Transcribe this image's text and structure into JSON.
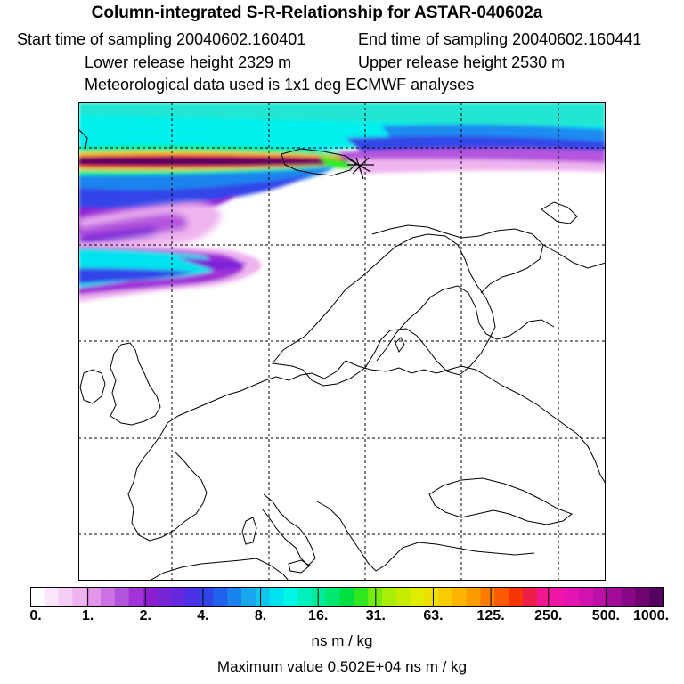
{
  "header": {
    "title": "Column-integrated S-R-Relationship for ASTAR-040602a",
    "start_time": "Start time of sampling 20040602.160401",
    "end_time": "End time of sampling 20040602.160441",
    "lower_release": "Lower release height 2329 m",
    "upper_release": "Upper release height 2530 m",
    "meteo": "Meteorological data used is 1x1 deg ECMWF analyses"
  },
  "map": {
    "region": "Europe and North Atlantic",
    "release_site_marker": "release-site-icon"
  },
  "colorbar": {
    "tick_labels": [
      "0.",
      "1.",
      "2.",
      "4.",
      "8.",
      "16.",
      "31.",
      "63.",
      "125.",
      "250.",
      "500.",
      "1000."
    ],
    "colors": [
      "#ffffff",
      "#fbe6fb",
      "#f5cef5",
      "#efb4f0",
      "#e296ea",
      "#cc72e4",
      "#b454dd",
      "#a032d8",
      "#8c1ed2",
      "#7a24d8",
      "#6628de",
      "#4a30e4",
      "#3244e8",
      "#2062ec",
      "#1a84ee",
      "#18a6ee",
      "#10c6ee",
      "#00e2ee",
      "#00f6e6",
      "#00f0c0",
      "#00ec98",
      "#00e870",
      "#00e040",
      "#30e820",
      "#78ec10",
      "#a8ee08",
      "#c8ec00",
      "#e2ec00",
      "#f0e000",
      "#f8cc00",
      "#fcb400",
      "#fc9c00",
      "#fc7c00",
      "#fc5a00",
      "#f83400",
      "#f01c48",
      "#f01890",
      "#ee16a8",
      "#e414b4",
      "#d212b0",
      "#bc10a8",
      "#a20c98",
      "#880888",
      "#700470",
      "#540060"
    ],
    "units": "ns m / kg"
  },
  "footer": {
    "max_value": "Maximum value  0.502E+04 ns m / kg"
  }
}
